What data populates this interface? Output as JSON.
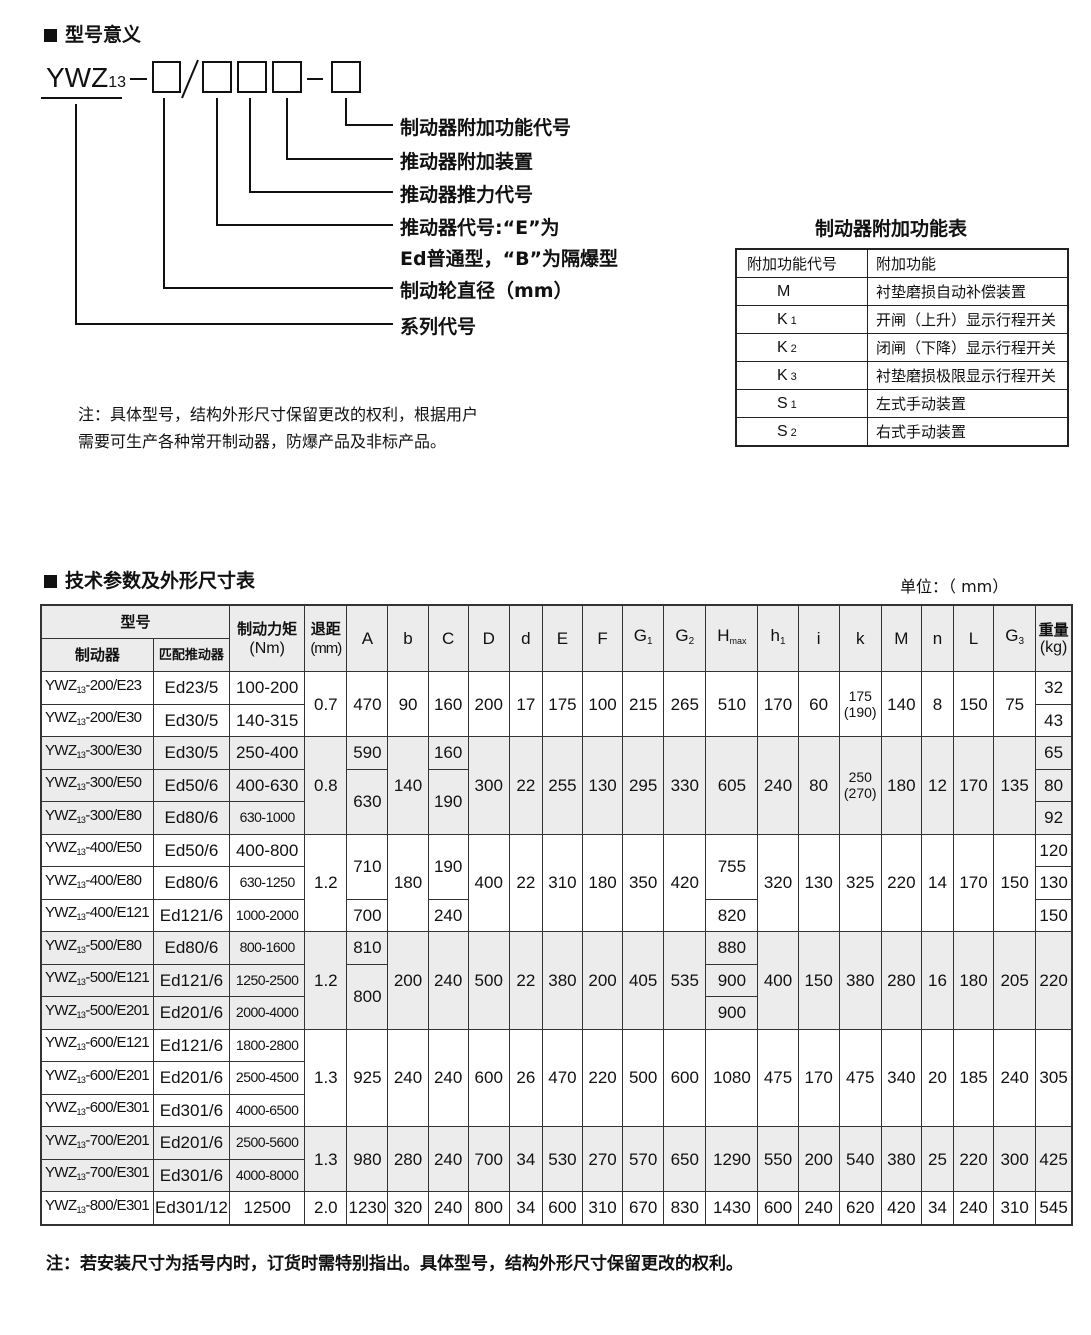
{
  "model_meaning": {
    "title": "型号意义",
    "code_prefix": "YWZ",
    "code_sub": "13",
    "code_sep1": "-",
    "code_slash": "/",
    "code_sep2": "-",
    "labels": [
      "制动器附加功能代号",
      "推动器附加装置",
      "推动器推力代号",
      "推动器代号:“E”为",
      "Ed普通型，“B”为隔爆型",
      "制动轮直径（mm）",
      "系列代号"
    ],
    "note": [
      "注：具体型号，结构外形尺寸保留更改的权利，根据用户",
      "需要可生产各种常开制动器，防爆产品及非标产品。"
    ]
  },
  "function_table": {
    "title": "制动器附加功能表",
    "headers": [
      "附加功能代号",
      "附加功能"
    ],
    "rows": [
      {
        "code": "M",
        "sub": "",
        "desc": "衬垫磨损自动补偿装置"
      },
      {
        "code": "K",
        "sub": "1",
        "desc": "开闸（上升）显示行程开关"
      },
      {
        "code": "K",
        "sub": "2",
        "desc": "闭闸（下降）显示行程开关"
      },
      {
        "code": "K",
        "sub": "3",
        "desc": "衬垫磨损极限显示行程开关"
      },
      {
        "code": "S",
        "sub": "1",
        "desc": "左式手动装置"
      },
      {
        "code": "S",
        "sub": "2",
        "desc": "右式手动装置"
      }
    ]
  },
  "spec_table": {
    "title": "技术参数及外形尺寸表",
    "unit": "单位：（ mm）",
    "header_group": "型号",
    "header_brake": "制动器",
    "header_actuator": "匹配推动器",
    "header_torque": [
      "制动力矩",
      "(Nm)"
    ],
    "header_retreat": [
      "退距",
      "(mm)"
    ],
    "header_weight": [
      "重量",
      "(kg)"
    ],
    "dim_headers": [
      {
        "t": "A"
      },
      {
        "t": "b"
      },
      {
        "t": "C"
      },
      {
        "t": "D"
      },
      {
        "t": "d"
      },
      {
        "t": "E"
      },
      {
        "t": "F"
      },
      {
        "t": "G",
        "sub": "1"
      },
      {
        "t": "G",
        "sub": "2"
      },
      {
        "t": "H",
        "sub": "max"
      },
      {
        "t": "h",
        "sub": "1"
      },
      {
        "t": "i"
      },
      {
        "t": "k"
      },
      {
        "t": "M"
      },
      {
        "t": "n"
      },
      {
        "t": "L"
      },
      {
        "t": "G",
        "sub": "3"
      }
    ],
    "groups_shaded": [
      300,
      500,
      700
    ],
    "rows": [
      {
        "g": 200,
        "model": "-200/E23",
        "cells": [
          "Ed23/5",
          "100-200",
          [
            "0.7",
            2
          ],
          [
            "470",
            2
          ],
          [
            "90",
            2
          ],
          [
            "160",
            2
          ],
          [
            "200",
            2
          ],
          [
            "17",
            2
          ],
          [
            "175",
            2
          ],
          [
            "100",
            2
          ],
          [
            "215",
            2
          ],
          [
            "265",
            2
          ],
          [
            "510",
            2
          ],
          [
            "170",
            2
          ],
          [
            "60",
            2
          ],
          [
            "175\n(190)",
            2
          ],
          [
            "140",
            2
          ],
          [
            "8",
            2
          ],
          [
            "150",
            2
          ],
          [
            "75",
            2
          ],
          "32"
        ]
      },
      {
        "g": 200,
        "model": "-200/E30",
        "cells": [
          "Ed30/5",
          "140-315",
          "43"
        ]
      },
      {
        "g": 300,
        "model": "-300/E30",
        "cells": [
          "Ed30/5",
          "250-400",
          [
            "0.8",
            3
          ],
          "590",
          [
            "140",
            3
          ],
          "160",
          [
            "300",
            3
          ],
          [
            "22",
            3
          ],
          [
            "255",
            3
          ],
          [
            "130",
            3
          ],
          [
            "295",
            3
          ],
          [
            "330",
            3
          ],
          [
            "605",
            3
          ],
          [
            "240",
            3
          ],
          [
            "80",
            3
          ],
          [
            "250\n(270)",
            3
          ],
          [
            "180",
            3
          ],
          [
            "12",
            3
          ],
          [
            "170",
            3
          ],
          [
            "135",
            3
          ],
          "65"
        ]
      },
      {
        "g": 300,
        "model": "-300/E50",
        "cells": [
          "Ed50/6",
          "400-630",
          [
            "630",
            2
          ],
          [
            "190",
            2
          ],
          "80"
        ]
      },
      {
        "g": 300,
        "model": "-300/E80",
        "cells": [
          "Ed80/6",
          "630-1000",
          "92"
        ]
      },
      {
        "g": 400,
        "model": "-400/E50",
        "cells": [
          "Ed50/6",
          "400-800",
          [
            "1.2",
            3
          ],
          [
            "710",
            2
          ],
          [
            "180",
            3
          ],
          [
            "190",
            2
          ],
          [
            "400",
            3
          ],
          [
            "22",
            3
          ],
          [
            "310",
            3
          ],
          [
            "180",
            3
          ],
          [
            "350",
            3
          ],
          [
            "420",
            3
          ],
          [
            "755",
            2
          ],
          [
            "320",
            3
          ],
          [
            "130",
            3
          ],
          [
            "325",
            3
          ],
          [
            "220",
            3
          ],
          [
            "14",
            3
          ],
          [
            "170",
            3
          ],
          [
            "150",
            3
          ],
          "120"
        ]
      },
      {
        "g": 400,
        "model": "-400/E80",
        "cells": [
          "Ed80/6",
          "630-1250",
          "130"
        ]
      },
      {
        "g": 400,
        "model": "-400/E121",
        "cells": [
          "Ed121/6",
          "1000-2000",
          "700",
          "240",
          "820",
          "150"
        ]
      },
      {
        "g": 500,
        "model": "-500/E80",
        "cells": [
          "Ed80/6",
          "800-1600",
          [
            "1.2",
            3
          ],
          "810",
          [
            "200",
            3
          ],
          [
            "240",
            3
          ],
          [
            "500",
            3
          ],
          [
            "22",
            3
          ],
          [
            "380",
            3
          ],
          [
            "200",
            3
          ],
          [
            "405",
            3
          ],
          [
            "535",
            3
          ],
          "880",
          [
            "400",
            3
          ],
          [
            "150",
            3
          ],
          [
            "380",
            3
          ],
          [
            "280",
            3
          ],
          [
            "16",
            3
          ],
          [
            "180",
            3
          ],
          [
            "205",
            3
          ],
          [
            "220",
            3
          ]
        ]
      },
      {
        "g": 500,
        "model": "-500/E121",
        "cells": [
          "Ed121/6",
          "1250-2500",
          [
            "800",
            2
          ],
          "900"
        ]
      },
      {
        "g": 500,
        "model": "-500/E201",
        "cells": [
          "Ed201/6",
          "2000-4000",
          "900"
        ]
      },
      {
        "g": 600,
        "model": "-600/E121",
        "cells": [
          "Ed121/6",
          "1800-2800",
          [
            "1.3",
            3
          ],
          [
            "925",
            3
          ],
          [
            "240",
            3
          ],
          [
            "240",
            3
          ],
          [
            "600",
            3
          ],
          [
            "26",
            3
          ],
          [
            "470",
            3
          ],
          [
            "220",
            3
          ],
          [
            "500",
            3
          ],
          [
            "600",
            3
          ],
          [
            "1080",
            3
          ],
          [
            "475",
            3
          ],
          [
            "170",
            3
          ],
          [
            "475",
            3
          ],
          [
            "340",
            3
          ],
          [
            "20",
            3
          ],
          [
            "185",
            3
          ],
          [
            "240",
            3
          ],
          [
            "305",
            3
          ]
        ]
      },
      {
        "g": 600,
        "model": "-600/E201",
        "cells": [
          "Ed201/6",
          "2500-4500"
        ]
      },
      {
        "g": 600,
        "model": "-600/E301",
        "cells": [
          "Ed301/6",
          "4000-6500"
        ]
      },
      {
        "g": 700,
        "model": "-700/E201",
        "cells": [
          "Ed201/6",
          "2500-5600",
          [
            "1.3",
            2
          ],
          [
            "980",
            2
          ],
          [
            "280",
            2
          ],
          [
            "240",
            2
          ],
          [
            "700",
            2
          ],
          [
            "34",
            2
          ],
          [
            "530",
            2
          ],
          [
            "270",
            2
          ],
          [
            "570",
            2
          ],
          [
            "650",
            2
          ],
          [
            "1290",
            2
          ],
          [
            "550",
            2
          ],
          [
            "200",
            2
          ],
          [
            "540",
            2
          ],
          [
            "380",
            2
          ],
          [
            "25",
            2
          ],
          [
            "220",
            2
          ],
          [
            "300",
            2
          ],
          [
            "425",
            2
          ]
        ]
      },
      {
        "g": 700,
        "model": "-700/E301",
        "cells": [
          "Ed301/6",
          "4000-8000"
        ]
      },
      {
        "g": 800,
        "model": "-800/E301",
        "cells": [
          "Ed301/12",
          "12500",
          "2.0",
          "1230",
          "320",
          "240",
          "800",
          "34",
          "600",
          "310",
          "670",
          "830",
          "1430",
          "600",
          "240",
          "620",
          "420",
          "34",
          "240",
          "310",
          "545"
        ]
      }
    ],
    "note": "注：若安装尺寸为括号内时，订货时需特别指出。具体型号，结构外形尺寸保留更改的权利。"
  }
}
